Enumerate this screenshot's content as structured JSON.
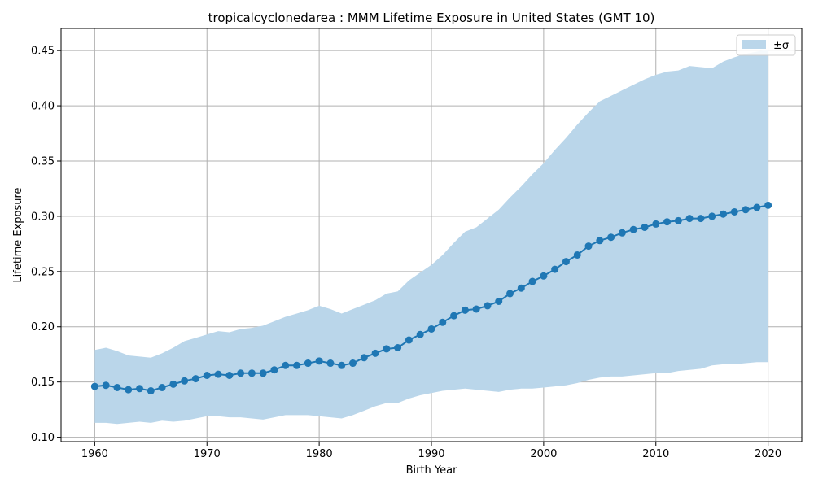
{
  "chart_data": {
    "type": "line",
    "title": "tropicalcyclonedarea : MMM Lifetime Exposure in United States (GMT 10)",
    "xlabel": "Birth Year",
    "ylabel": "Lifetime Exposure",
    "xlim": [
      1957,
      2023
    ],
    "ylim": [
      0.096,
      0.47
    ],
    "xticks": [
      1960,
      1970,
      1980,
      1990,
      2000,
      2010,
      2020
    ],
    "yticks": [
      0.1,
      0.15,
      0.2,
      0.25,
      0.3,
      0.35,
      0.4,
      0.45
    ],
    "grid": true,
    "legend": {
      "position": "top-right",
      "label": "±σ"
    },
    "colors": {
      "line": "#1f77b4",
      "band": "#bad6ea",
      "grid": "#b0b0b0"
    },
    "x": [
      1960,
      1961,
      1962,
      1963,
      1964,
      1965,
      1966,
      1967,
      1968,
      1969,
      1970,
      1971,
      1972,
      1973,
      1974,
      1975,
      1976,
      1977,
      1978,
      1979,
      1980,
      1981,
      1982,
      1983,
      1984,
      1985,
      1986,
      1987,
      1988,
      1989,
      1990,
      1991,
      1992,
      1993,
      1994,
      1995,
      1996,
      1997,
      1998,
      1999,
      2000,
      2001,
      2002,
      2003,
      2004,
      2005,
      2006,
      2007,
      2008,
      2009,
      2010,
      2011,
      2012,
      2013,
      2014,
      2015,
      2016,
      2017,
      2018,
      2019,
      2020
    ],
    "series": [
      {
        "kind": "mean",
        "values": [
          0.146,
          0.147,
          0.145,
          0.143,
          0.144,
          0.142,
          0.145,
          0.148,
          0.151,
          0.153,
          0.156,
          0.157,
          0.156,
          0.158,
          0.158,
          0.158,
          0.161,
          0.165,
          0.165,
          0.167,
          0.169,
          0.167,
          0.165,
          0.167,
          0.172,
          0.176,
          0.18,
          0.181,
          0.188,
          0.193,
          0.198,
          0.204,
          0.21,
          0.215,
          0.216,
          0.219,
          0.223,
          0.23,
          0.235,
          0.241,
          0.246,
          0.252,
          0.259,
          0.265,
          0.273,
          0.278,
          0.281,
          0.285,
          0.288,
          0.29,
          0.293,
          0.295,
          0.296,
          0.298,
          0.298,
          0.3,
          0.302,
          0.304,
          0.306,
          0.308,
          0.31
        ]
      },
      {
        "kind": "upper",
        "values": [
          0.179,
          0.181,
          0.178,
          0.174,
          0.173,
          0.172,
          0.176,
          0.181,
          0.187,
          0.19,
          0.193,
          0.196,
          0.195,
          0.198,
          0.199,
          0.201,
          0.205,
          0.209,
          0.212,
          0.215,
          0.219,
          0.216,
          0.212,
          0.216,
          0.22,
          0.224,
          0.23,
          0.232,
          0.242,
          0.249,
          0.256,
          0.265,
          0.276,
          0.286,
          0.29,
          0.298,
          0.306,
          0.317,
          0.327,
          0.338,
          0.348,
          0.36,
          0.371,
          0.383,
          0.394,
          0.404,
          0.409,
          0.414,
          0.419,
          0.424,
          0.428,
          0.431,
          0.432,
          0.436,
          0.435,
          0.434,
          0.44,
          0.444,
          0.447,
          0.449,
          0.451
        ]
      },
      {
        "kind": "lower",
        "values": [
          0.113,
          0.113,
          0.112,
          0.113,
          0.114,
          0.113,
          0.115,
          0.114,
          0.115,
          0.117,
          0.119,
          0.119,
          0.118,
          0.118,
          0.117,
          0.116,
          0.118,
          0.12,
          0.12,
          0.12,
          0.119,
          0.118,
          0.117,
          0.12,
          0.124,
          0.128,
          0.131,
          0.131,
          0.135,
          0.138,
          0.14,
          0.142,
          0.143,
          0.144,
          0.143,
          0.142,
          0.141,
          0.143,
          0.144,
          0.144,
          0.145,
          0.146,
          0.147,
          0.149,
          0.152,
          0.154,
          0.155,
          0.155,
          0.156,
          0.157,
          0.158,
          0.158,
          0.16,
          0.161,
          0.162,
          0.165,
          0.166,
          0.166,
          0.167,
          0.168,
          0.168
        ]
      }
    ]
  }
}
